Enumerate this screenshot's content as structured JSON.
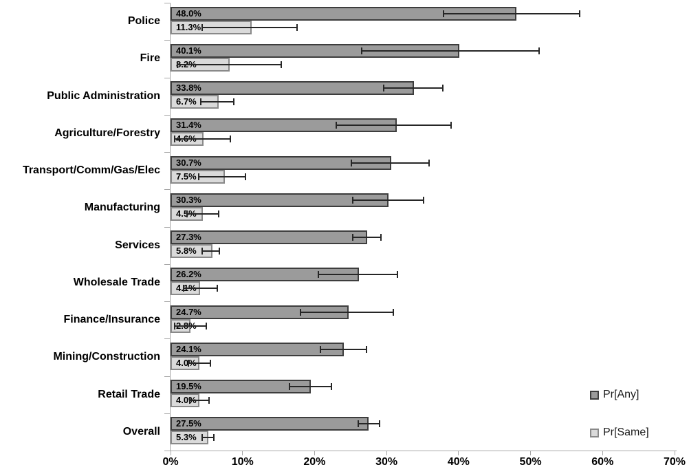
{
  "chart_data": {
    "type": "bar",
    "orientation": "horizontal",
    "title": "",
    "xlabel": "",
    "ylabel": "",
    "categories": [
      "Police",
      "Fire",
      "Public Administration",
      "Agriculture/Forestry",
      "Transport/Comm/Gas/Elec",
      "Manufacturing",
      "Services",
      "Wholesale Trade",
      "Finance/Insurance",
      "Mining/Construction",
      "Retail Trade",
      "Overall"
    ],
    "x_axis": {
      "min": 0,
      "max": 70,
      "tick_step": 10,
      "tick_labels": [
        "0%",
        "10%",
        "20%",
        "30%",
        "40%",
        "50%",
        "60%",
        "70%"
      ],
      "grid": false
    },
    "series": [
      {
        "name": "Pr[Any]",
        "fill": "#9b9b9b",
        "border": "#3d3d3d",
        "values": [
          48.0,
          40.1,
          33.8,
          31.4,
          30.7,
          30.3,
          27.3,
          26.2,
          24.7,
          24.1,
          19.5,
          27.5
        ],
        "labels": [
          "48.0%",
          "40.1%",
          "33.8%",
          "31.4%",
          "30.7%",
          "30.3%",
          "27.3%",
          "26.2%",
          "24.7%",
          "24.1%",
          "19.5%",
          "27.5%"
        ],
        "error_low": [
          37.8,
          26.5,
          29.5,
          22.9,
          25.0,
          25.2,
          25.2,
          20.4,
          18.0,
          20.7,
          16.4,
          26.0
        ],
        "error_high": [
          56.9,
          51.3,
          37.9,
          39.1,
          36.0,
          35.2,
          29.3,
          31.6,
          31.0,
          27.3,
          22.4,
          29.1
        ]
      },
      {
        "name": "Pr[Same]",
        "fill": "#dadada",
        "border": "#898989",
        "values": [
          11.3,
          8.2,
          6.7,
          4.6,
          7.5,
          4.5,
          5.8,
          4.1,
          2.8,
          4.0,
          4.0,
          5.3
        ],
        "labels": [
          "11.3%",
          "8.2%",
          "6.7%",
          "4.6%",
          "7.5%",
          "4.5%",
          "5.8%",
          "4.1%",
          "2.8%",
          "4.0%",
          "4.0%",
          "5.3%"
        ],
        "error_low": [
          4.3,
          0.9,
          4.1,
          0.5,
          3.8,
          2.2,
          4.3,
          1.7,
          0.5,
          2.4,
          2.6,
          4.3
        ],
        "error_high": [
          17.7,
          15.5,
          8.9,
          8.4,
          10.5,
          6.8,
          6.9,
          6.6,
          5.1,
          5.6,
          5.4,
          6.1
        ]
      }
    ],
    "legend": {
      "position": "right",
      "entries": [
        "Pr[Any]",
        "Pr[Same]"
      ]
    },
    "colors": {
      "axis": "#a6a6a6",
      "error_bar": "#262626",
      "label_text": "#000000",
      "background": "#ffffff"
    }
  }
}
